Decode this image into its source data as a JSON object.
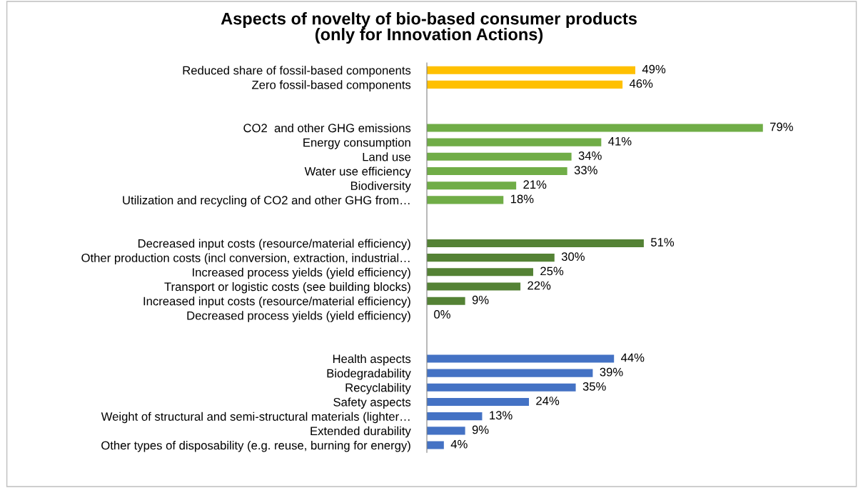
{
  "chart_data": {
    "type": "bar",
    "orientation": "horizontal",
    "title": "Aspects of novelty of bio-based consumer products\n(only for Innovation Actions)",
    "categories": [
      "Reduced share of fossil-based components",
      "Zero fossil-based components",
      null,
      null,
      "CO2  and other GHG emissions",
      "Energy consumption",
      "Land use",
      "Water use efficiency",
      "Biodiversity",
      "Utilization and recycling of CO2 and other GHG from…",
      null,
      null,
      "Decreased input costs (resource/material efficiency)",
      "Other production costs (incl conversion, extraction, industrial…",
      "Increased process yields (yield efficiency)",
      "Transport or logistic costs (see building blocks)",
      "Increased input costs (resource/material efficiency)",
      "Decreased process yields (yield efficiency)",
      null,
      null,
      "Health aspects",
      "Biodegradability",
      "Recyclability",
      "Safety aspects",
      "Weight of structural and semi-structural materials (lighter…",
      "Extended durability",
      "Other types of disposability (e.g. reuse, burning for energy)"
    ],
    "values": [
      49,
      46,
      null,
      null,
      79,
      41,
      34,
      33,
      21,
      18,
      null,
      null,
      51,
      30,
      25,
      22,
      9,
      0,
      null,
      null,
      44,
      39,
      35,
      24,
      13,
      9,
      4
    ],
    "value_labels": [
      "49%",
      "46%",
      null,
      null,
      "79%",
      "41%",
      "34%",
      "33%",
      "21%",
      "18%",
      null,
      null,
      "51%",
      "30%",
      "25%",
      "22%",
      "9%",
      "0%",
      null,
      null,
      "44%",
      "39%",
      "35%",
      "24%",
      "13%",
      "9%",
      "4%"
    ],
    "colors": [
      "#ffc000",
      "#ffc000",
      null,
      null,
      "#70ad47",
      "#70ad47",
      "#70ad47",
      "#70ad47",
      "#70ad47",
      "#70ad47",
      null,
      null,
      "#548235",
      "#548235",
      "#548235",
      "#548235",
      "#548235",
      "#548235",
      null,
      null,
      "#4472c4",
      "#4472c4",
      "#4472c4",
      "#4472c4",
      "#4472c4",
      "#4472c4",
      "#4472c4"
    ],
    "grid": false,
    "legend": false
  }
}
